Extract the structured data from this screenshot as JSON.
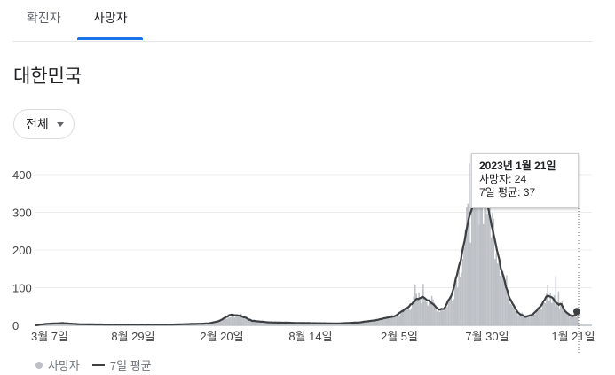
{
  "tabs": [
    {
      "label": "확진자",
      "active": false
    },
    {
      "label": "사망자",
      "active": true
    }
  ],
  "region": "대한민국",
  "filter": {
    "label": "전체"
  },
  "tooltip": {
    "date": "2023년 1월 21일",
    "deaths": "사망자: 24",
    "avg": "7일 평균: 37"
  },
  "legend": {
    "series_daily": "사망자",
    "series_avg": "7일 평균"
  },
  "colors": {
    "accent": "#1a73e8",
    "bar": "#bdc1c6",
    "line": "#3c4043"
  },
  "chart_data": {
    "type": "bar",
    "title": "",
    "xlabel": "",
    "ylabel": "",
    "ylim": [
      0,
      450
    ],
    "yticks": [
      0,
      100,
      200,
      300,
      400
    ],
    "xtick_labels": [
      "3월 7일",
      "8월 29일",
      "2월 20일",
      "8월 14일",
      "2월 5일",
      "7월 30일",
      "1월 21일"
    ],
    "grid": true,
    "legend_position": "bottom-left",
    "series": [
      {
        "name": "사망자",
        "type": "bar",
        "note_only_shape": "daily deaths (bars)"
      },
      {
        "name": "7일 평균",
        "type": "line"
      }
    ],
    "avg_keypoints": [
      {
        "t": 0,
        "v": 0
      },
      {
        "t": 0.02,
        "v": 4
      },
      {
        "t": 0.05,
        "v": 6
      },
      {
        "t": 0.08,
        "v": 3
      },
      {
        "t": 0.14,
        "v": 2
      },
      {
        "t": 0.25,
        "v": 2
      },
      {
        "t": 0.32,
        "v": 5
      },
      {
        "t": 0.34,
        "v": 12
      },
      {
        "t": 0.36,
        "v": 28
      },
      {
        "t": 0.38,
        "v": 25
      },
      {
        "t": 0.4,
        "v": 12
      },
      {
        "t": 0.43,
        "v": 8
      },
      {
        "t": 0.5,
        "v": 6
      },
      {
        "t": 0.56,
        "v": 5
      },
      {
        "t": 0.6,
        "v": 8
      },
      {
        "t": 0.63,
        "v": 14
      },
      {
        "t": 0.665,
        "v": 25
      },
      {
        "t": 0.685,
        "v": 45
      },
      {
        "t": 0.705,
        "v": 70
      },
      {
        "t": 0.715,
        "v": 76
      },
      {
        "t": 0.73,
        "v": 62
      },
      {
        "t": 0.745,
        "v": 42
      },
      {
        "t": 0.755,
        "v": 45
      },
      {
        "t": 0.77,
        "v": 85
      },
      {
        "t": 0.785,
        "v": 170
      },
      {
        "t": 0.8,
        "v": 280
      },
      {
        "t": 0.81,
        "v": 330
      },
      {
        "t": 0.815,
        "v": 355
      },
      {
        "t": 0.825,
        "v": 345
      },
      {
        "t": 0.835,
        "v": 320
      },
      {
        "t": 0.845,
        "v": 250
      },
      {
        "t": 0.86,
        "v": 150
      },
      {
        "t": 0.875,
        "v": 75
      },
      {
        "t": 0.89,
        "v": 35
      },
      {
        "t": 0.905,
        "v": 22
      },
      {
        "t": 0.92,
        "v": 30
      },
      {
        "t": 0.935,
        "v": 55
      },
      {
        "t": 0.945,
        "v": 78
      },
      {
        "t": 0.955,
        "v": 72
      },
      {
        "t": 0.965,
        "v": 55
      },
      {
        "t": 0.97,
        "v": 58
      },
      {
        "t": 0.98,
        "v": 35
      },
      {
        "t": 0.99,
        "v": 24
      },
      {
        "t": 1.0,
        "v": 28
      }
    ],
    "avg_tail": [
      {
        "t": 0,
        "v": 28
      },
      {
        "t": 0.15,
        "v": 32
      },
      {
        "t": 0.3,
        "v": 45
      },
      {
        "t": 0.5,
        "v": 52
      },
      {
        "t": 0.7,
        "v": 50
      },
      {
        "t": 0.85,
        "v": 52
      },
      {
        "t": 0.95,
        "v": 45
      },
      {
        "t": 1.0,
        "v": 37
      }
    ],
    "bar_peaks": [
      {
        "t": 0.7,
        "v": 108
      },
      {
        "t": 0.715,
        "v": 110
      },
      {
        "t": 0.8,
        "v": 430
      },
      {
        "t": 0.81,
        "v": 455
      },
      {
        "t": 0.82,
        "v": 440
      },
      {
        "t": 0.83,
        "v": 400
      },
      {
        "t": 0.945,
        "v": 108
      },
      {
        "t": 0.96,
        "v": 130
      },
      {
        "t": 0.965,
        "v": 90
      }
    ]
  }
}
